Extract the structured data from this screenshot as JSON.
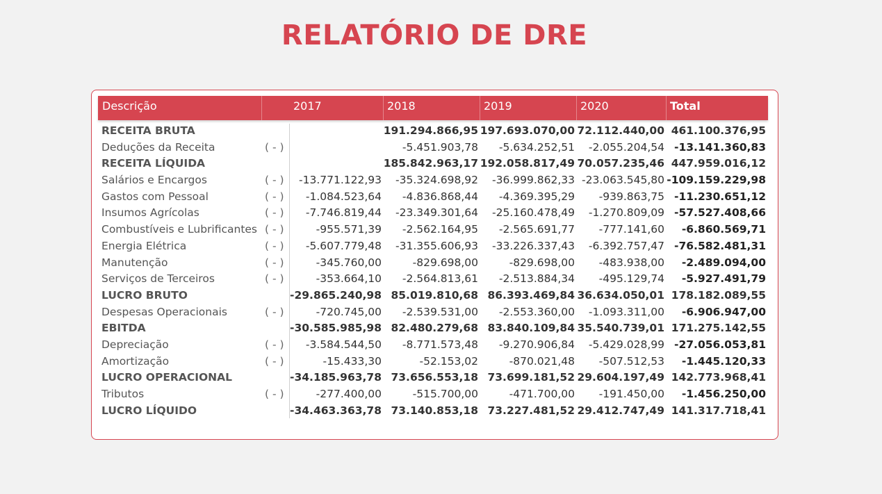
{
  "title": "RELATÓRIO DE DRE",
  "columns": [
    "Descrição",
    "2017",
    "2018",
    "2019",
    "2020",
    "Total"
  ],
  "accent_color": "#d64550",
  "rows": [
    {
      "desc": "RECEITA BRUTA",
      "op": "",
      "bold": true,
      "v2017": "",
      "v2018": "191.294.866,95",
      "v2019": "197.693.070,00",
      "v2020": "72.112.440,00",
      "total": "461.100.376,95"
    },
    {
      "desc": "Deduções da Receita",
      "op": "( - )",
      "bold": false,
      "v2017": "",
      "v2018": "-5.451.903,78",
      "v2019": "-5.634.252,51",
      "v2020": "-2.055.204,54",
      "total": "-13.141.360,83"
    },
    {
      "desc": "RECEITA LÍQUIDA",
      "op": "",
      "bold": true,
      "v2017": "",
      "v2018": "185.842.963,17",
      "v2019": "192.058.817,49",
      "v2020": "70.057.235,46",
      "total": "447.959.016,12"
    },
    {
      "desc": "Salários e Encargos",
      "op": "( - )",
      "bold": false,
      "v2017": "-13.771.122,93",
      "v2018": "-35.324.698,92",
      "v2019": "-36.999.862,33",
      "v2020": "-23.063.545,80",
      "total": "-109.159.229,98"
    },
    {
      "desc": "Gastos com Pessoal",
      "op": "( - )",
      "bold": false,
      "v2017": "-1.084.523,64",
      "v2018": "-4.836.868,44",
      "v2019": "-4.369.395,29",
      "v2020": "-939.863,75",
      "total": "-11.230.651,12"
    },
    {
      "desc": "Insumos Agrícolas",
      "op": "( - )",
      "bold": false,
      "v2017": "-7.746.819,44",
      "v2018": "-23.349.301,64",
      "v2019": "-25.160.478,49",
      "v2020": "-1.270.809,09",
      "total": "-57.527.408,66"
    },
    {
      "desc": "Combustíveis e Lubrificantes",
      "op": "( - )",
      "bold": false,
      "v2017": "-955.571,39",
      "v2018": "-2.562.164,95",
      "v2019": "-2.565.691,77",
      "v2020": "-777.141,60",
      "total": "-6.860.569,71"
    },
    {
      "desc": "Energia Elétrica",
      "op": "( - )",
      "bold": false,
      "v2017": "-5.607.779,48",
      "v2018": "-31.355.606,93",
      "v2019": "-33.226.337,43",
      "v2020": "-6.392.757,47",
      "total": "-76.582.481,31"
    },
    {
      "desc": "Manutenção",
      "op": "( - )",
      "bold": false,
      "v2017": "-345.760,00",
      "v2018": "-829.698,00",
      "v2019": "-829.698,00",
      "v2020": "-483.938,00",
      "total": "-2.489.094,00"
    },
    {
      "desc": "Serviços de Terceiros",
      "op": "( - )",
      "bold": false,
      "v2017": "-353.664,10",
      "v2018": "-2.564.813,61",
      "v2019": "-2.513.884,34",
      "v2020": "-495.129,74",
      "total": "-5.927.491,79"
    },
    {
      "desc": "LUCRO BRUTO",
      "op": "",
      "bold": true,
      "v2017": "-29.865.240,98",
      "v2018": "85.019.810,68",
      "v2019": "86.393.469,84",
      "v2020": "36.634.050,01",
      "total": "178.182.089,55"
    },
    {
      "desc": "Despesas Operacionais",
      "op": "( - )",
      "bold": false,
      "v2017": "-720.745,00",
      "v2018": "-2.539.531,00",
      "v2019": "-2.553.360,00",
      "v2020": "-1.093.311,00",
      "total": "-6.906.947,00"
    },
    {
      "desc": "EBITDA",
      "op": "",
      "bold": true,
      "v2017": "-30.585.985,98",
      "v2018": "82.480.279,68",
      "v2019": "83.840.109,84",
      "v2020": "35.540.739,01",
      "total": "171.275.142,55"
    },
    {
      "desc": "Depreciação",
      "op": "( - )",
      "bold": false,
      "v2017": "-3.584.544,50",
      "v2018": "-8.771.573,48",
      "v2019": "-9.270.906,84",
      "v2020": "-5.429.028,99",
      "total": "-27.056.053,81"
    },
    {
      "desc": "Amortização",
      "op": "( - )",
      "bold": false,
      "v2017": "-15.433,30",
      "v2018": "-52.153,02",
      "v2019": "-870.021,48",
      "v2020": "-507.512,53",
      "total": "-1.445.120,33"
    },
    {
      "desc": "LUCRO OPERACIONAL",
      "op": "",
      "bold": true,
      "v2017": "-34.185.963,78",
      "v2018": "73.656.553,18",
      "v2019": "73.699.181,52",
      "v2020": "29.604.197,49",
      "total": "142.773.968,41"
    },
    {
      "desc": "Tributos",
      "op": "( - )",
      "bold": false,
      "v2017": "-277.400,00",
      "v2018": "-515.700,00",
      "v2019": "-471.700,00",
      "v2020": "-191.450,00",
      "total": "-1.456.250,00"
    },
    {
      "desc": "LUCRO LÍQUIDO",
      "op": "",
      "bold": true,
      "v2017": "-34.463.363,78",
      "v2018": "73.140.853,18",
      "v2019": "73.227.481,52",
      "v2020": "29.412.747,49",
      "total": "141.317.718,41"
    }
  ]
}
